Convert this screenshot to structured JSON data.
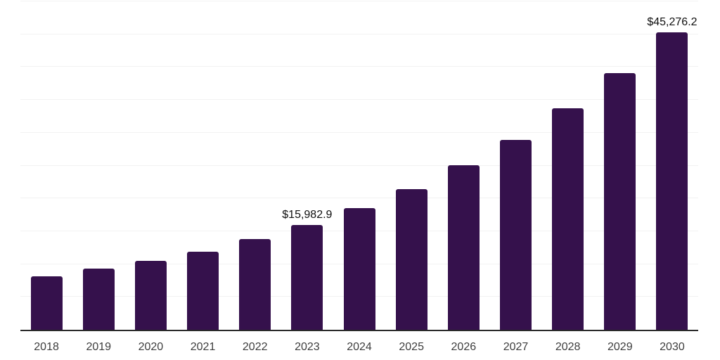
{
  "chart_data": {
    "type": "bar",
    "title": "",
    "xlabel": "",
    "ylabel": "",
    "categories": [
      "2018",
      "2019",
      "2020",
      "2021",
      "2022",
      "2023",
      "2024",
      "2025",
      "2026",
      "2027",
      "2028",
      "2029",
      "2030"
    ],
    "values": [
      8115,
      9294,
      10506,
      11867,
      13829,
      15982.9,
      18546,
      21408,
      25010,
      28944,
      33736,
      39128,
      45276.2
    ],
    "bar_labels": [
      "",
      "",
      "",
      "",
      "",
      "$15,982.9",
      "",
      "",
      "",
      "",
      "",
      "",
      "$45,276.2"
    ],
    "ylim": [
      0,
      50000
    ],
    "grid_step": 5000,
    "grid": "horizontal-only",
    "y_axis_labels": "none",
    "legend_position": "none"
  },
  "colors": {
    "bar": "#35114C",
    "grid_line": "#f2f2f2",
    "axis_line": "#2a2a2a",
    "tick_label": "#3d3d3d",
    "data_label": "#0f0f0f",
    "background": "#ffffff"
  }
}
